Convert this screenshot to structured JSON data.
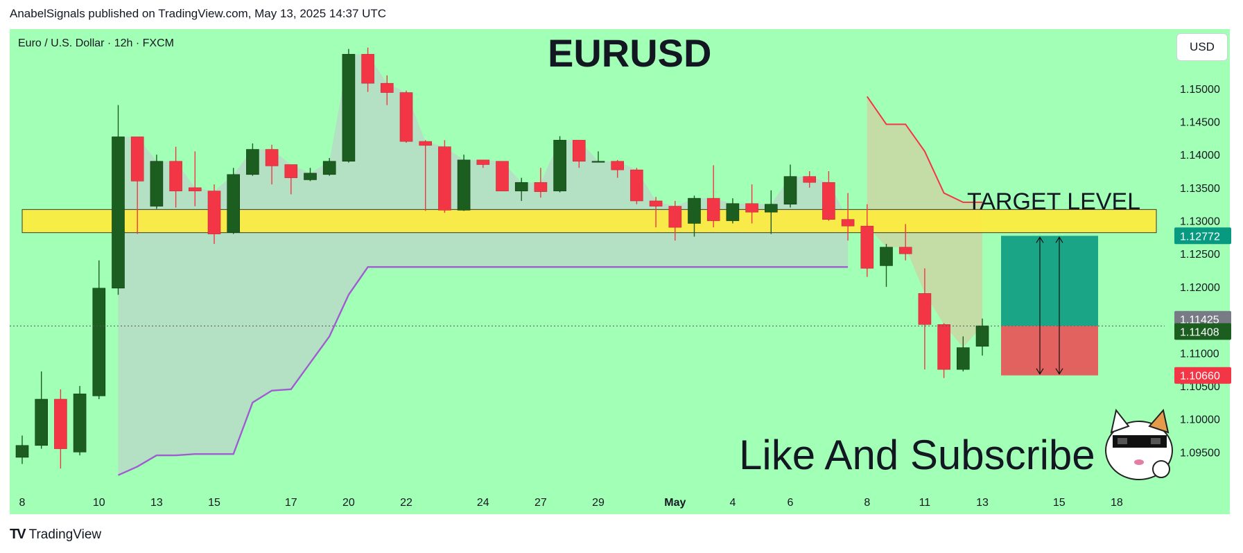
{
  "header": {
    "text": "AnabelSignals published on TradingView.com, May 13, 2025 14:37 UTC"
  },
  "symbol": {
    "text": "Euro / U.S. Dollar · 12h · FXCM"
  },
  "currency_button": {
    "label": "USD"
  },
  "footer": {
    "logo": "TV",
    "brand": "TradingView"
  },
  "annotations": {
    "title": "EURUSD",
    "target_label": "TARGET LEVEL",
    "subscribe": "Like And Subscribe"
  },
  "colors": {
    "background": "#a2ffb6",
    "bull": "#1b5e20",
    "bear": "#f23645",
    "zone": "#ffeb3b",
    "profit": "#089981",
    "loss": "#f23645",
    "trail_red": "#f23645",
    "trail_purple": "#a05cd0"
  },
  "chart_data": {
    "type": "candlestick",
    "title": "EURUSD",
    "ylim": [
      1.09,
      1.159
    ],
    "y_ticks": [
      "1.15000",
      "1.14500",
      "1.14000",
      "1.13500",
      "1.13000",
      "1.12500",
      "1.12000",
      "1.11500",
      "1.11000",
      "1.10500",
      "1.10000",
      "1.09500"
    ],
    "x_ticks": [
      {
        "label": "8",
        "i": 0
      },
      {
        "label": "10",
        "i": 4
      },
      {
        "label": "13",
        "i": 7
      },
      {
        "label": "15",
        "i": 10
      },
      {
        "label": "17",
        "i": 14
      },
      {
        "label": "20",
        "i": 17
      },
      {
        "label": "22",
        "i": 20
      },
      {
        "label": "24",
        "i": 24
      },
      {
        "label": "27",
        "i": 27
      },
      {
        "label": "29",
        "i": 30
      },
      {
        "label": "May",
        "i": 34
      },
      {
        "label": "4",
        "i": 37
      },
      {
        "label": "6",
        "i": 40
      },
      {
        "label": "8",
        "i": 44
      },
      {
        "label": "11",
        "i": 47
      },
      {
        "label": "13",
        "i": 50
      },
      {
        "label": "15",
        "i": 54
      },
      {
        "label": "18",
        "i": 57
      }
    ],
    "candles": [
      [
        1.0942,
        1.096,
        1.0932,
        1.0975
      ],
      [
        1.096,
        1.103,
        1.0955,
        1.1072
      ],
      [
        1.103,
        1.0955,
        1.0925,
        1.1045
      ],
      [
        1.095,
        1.1038,
        1.0945,
        1.105
      ],
      [
        1.1035,
        1.1198,
        1.103,
        1.124
      ],
      [
        1.1198,
        1.1427,
        1.1188,
        1.1475
      ],
      [
        1.1427,
        1.136,
        1.128,
        1.1427
      ],
      [
        1.1322,
        1.139,
        1.1318,
        1.14
      ],
      [
        1.139,
        1.1345,
        1.132,
        1.1412
      ],
      [
        1.135,
        1.1345,
        1.1322,
        1.1405
      ],
      [
        1.1345,
        1.128,
        1.1265,
        1.1355
      ],
      [
        1.1282,
        1.137,
        1.128,
        1.138
      ],
      [
        1.137,
        1.1408,
        1.1368,
        1.1417
      ],
      [
        1.1408,
        1.1383,
        1.1355,
        1.1415
      ],
      [
        1.1385,
        1.1365,
        1.134,
        1.1385
      ],
      [
        1.1362,
        1.1372,
        1.136,
        1.138
      ],
      [
        1.137,
        1.139,
        1.1368,
        1.1395
      ],
      [
        1.139,
        1.1552,
        1.1388,
        1.156
      ],
      [
        1.1552,
        1.1508,
        1.1495,
        1.1562
      ],
      [
        1.1508,
        1.1494,
        1.1475,
        1.152
      ],
      [
        1.1494,
        1.142,
        1.1418,
        1.1497
      ],
      [
        1.142,
        1.1414,
        1.1315,
        1.1422
      ],
      [
        1.1412,
        1.1316,
        1.1312,
        1.1422
      ],
      [
        1.1316,
        1.1392,
        1.1315,
        1.14
      ],
      [
        1.1392,
        1.1385,
        1.138,
        1.1392
      ],
      [
        1.139,
        1.1345,
        1.1345,
        1.139
      ],
      [
        1.1345,
        1.1358,
        1.133,
        1.1365
      ],
      [
        1.1358,
        1.1344,
        1.1335,
        1.138
      ],
      [
        1.1345,
        1.1422,
        1.1343,
        1.1428
      ],
      [
        1.1422,
        1.139,
        1.138,
        1.1422
      ],
      [
        1.139,
        1.139,
        1.139,
        1.1405
      ],
      [
        1.139,
        1.1377,
        1.1365,
        1.1392
      ],
      [
        1.1377,
        1.133,
        1.1325,
        1.138
      ],
      [
        1.133,
        1.1322,
        1.129,
        1.1336
      ],
      [
        1.1322,
        1.129,
        1.127,
        1.133
      ],
      [
        1.1296,
        1.1334,
        1.1276,
        1.1338
      ],
      [
        1.1334,
        1.13,
        1.129,
        1.1384
      ],
      [
        1.13,
        1.1326,
        1.1296,
        1.1334
      ],
      [
        1.1326,
        1.1313,
        1.1296,
        1.1355
      ],
      [
        1.1313,
        1.1325,
        1.128,
        1.1346
      ],
      [
        1.1325,
        1.1367,
        1.132,
        1.1385
      ],
      [
        1.1367,
        1.1358,
        1.135,
        1.1375
      ],
      [
        1.1358,
        1.1302,
        1.13,
        1.1375
      ],
      [
        1.1302,
        1.1292,
        1.127,
        1.1342
      ],
      [
        1.1292,
        1.1228,
        1.1215,
        1.1325
      ],
      [
        1.1232,
        1.126,
        1.12,
        1.1265
      ],
      [
        1.126,
        1.125,
        1.124,
        1.1295
      ],
      [
        1.119,
        1.1143,
        1.1075,
        1.1228
      ],
      [
        1.1143,
        1.1075,
        1.1062,
        1.1145
      ],
      [
        1.1075,
        1.1108,
        1.1072,
        1.1125
      ],
      [
        1.111,
        1.1141,
        1.1096,
        1.1152
      ]
    ],
    "price_labels": [
      {
        "value": "1.12772",
        "y": 1.12772,
        "color": "#089981"
      },
      {
        "value": "1.11425",
        "y": 1.11425,
        "color": "#787b86"
      },
      {
        "value": "1.11408",
        "y": 1.11408,
        "color": "#1b5e20"
      },
      {
        "value": "1.10660",
        "y": 1.1066,
        "color": "#f23645"
      }
    ],
    "current_price": 1.11408,
    "zone": {
      "y_low": 1.1282,
      "y_high": 1.1317
    },
    "position": {
      "i_start": 51,
      "i_end": 56,
      "entry": 1.11408,
      "target": 1.12772,
      "stop": 1.1066
    },
    "trail_red": [
      [
        44,
        1.1488
      ],
      [
        45,
        1.1446
      ],
      [
        46,
        1.1446
      ],
      [
        47,
        1.1405
      ],
      [
        48,
        1.1342
      ],
      [
        49,
        1.1328
      ],
      [
        50,
        1.1328
      ]
    ],
    "trail_purple": [
      [
        5,
        1.0915
      ],
      [
        6,
        1.0928
      ],
      [
        7,
        1.0945
      ],
      [
        8,
        1.0945
      ],
      [
        9,
        1.0947
      ],
      [
        10,
        1.0947
      ],
      [
        11,
        1.0947
      ],
      [
        12,
        1.1025
      ],
      [
        13,
        1.1043
      ],
      [
        14,
        1.1045
      ],
      [
        15,
        1.1085
      ],
      [
        16,
        1.1125
      ],
      [
        17,
        1.1188
      ],
      [
        18,
        1.123
      ],
      [
        19,
        1.123
      ],
      [
        20,
        1.123
      ],
      [
        40,
        1.123
      ],
      [
        43,
        1.123
      ]
    ]
  }
}
